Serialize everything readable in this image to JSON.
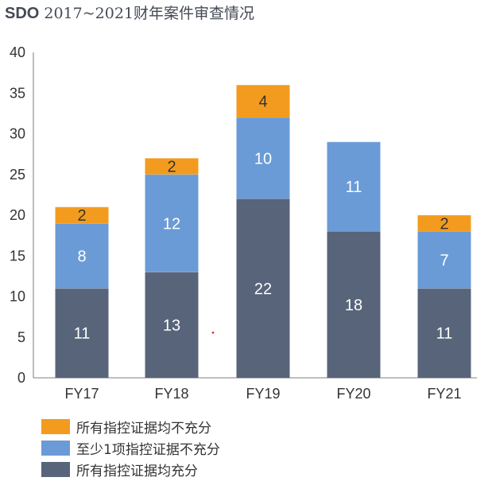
{
  "title_prefix": "SDO",
  "title_rest": " 2017~2021财年案件审查情况",
  "colors": {
    "sufficient": "#58647a",
    "partial": "#6a9bd6",
    "insufficient": "#f39b1e",
    "axis": "#999999",
    "tick_text": "#333333"
  },
  "chart_data": {
    "type": "bar",
    "stacked": true,
    "title": "SDO 2017~2021财年案件审查情况",
    "categories": [
      "FY17",
      "FY18",
      "FY19",
      "FY20",
      "FY21"
    ],
    "ylim": [
      0,
      40
    ],
    "yticks": [
      0,
      5,
      10,
      15,
      20,
      25,
      30,
      35,
      40
    ],
    "grid": false,
    "legend_position": "bottom-left",
    "series": [
      {
        "name": "所有指控证据均充分",
        "color": "#58647a",
        "values": [
          11,
          13,
          22,
          18,
          11
        ]
      },
      {
        "name": "至少1项指控证据不充分",
        "color": "#6a9bd6",
        "values": [
          8,
          12,
          10,
          11,
          7
        ]
      },
      {
        "name": "所有指控证据均不充分",
        "color": "#f39b1e",
        "values": [
          2,
          2,
          4,
          0,
          2
        ]
      }
    ]
  },
  "legend": [
    {
      "label": "所有指控证据均不充分",
      "color": "#f39b1e"
    },
    {
      "label": "至少1项指控证据不充分",
      "color": "#6a9bd6"
    },
    {
      "label": "所有指控证据均充分",
      "color": "#58647a"
    }
  ]
}
